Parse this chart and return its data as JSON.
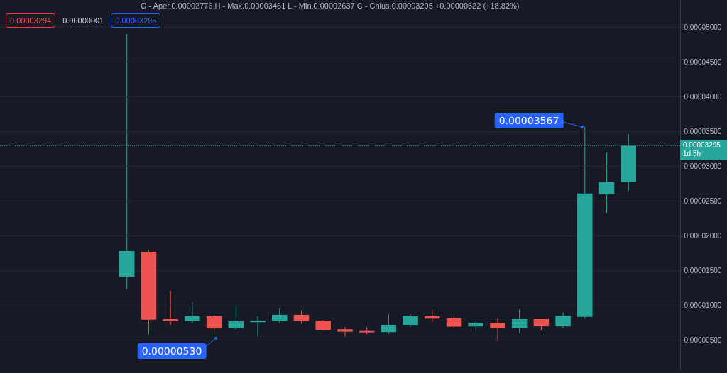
{
  "chart_data": {
    "type": "candlestick",
    "categories": [
      null,
      null,
      null,
      null,
      null,
      null,
      null,
      null,
      null,
      null,
      null,
      null,
      null,
      null,
      null,
      null,
      null,
      null,
      null,
      null,
      null,
      null,
      null,
      null
    ],
    "ohlc": [
      [
        1.415e-05,
        4.898e-05,
        1.232e-05,
        1.782e-05
      ],
      [
        1.772e-05,
        1.802e-05,
        5.9e-06,
        7.95e-06
      ],
      [
        8.04e-06,
        1.202e-05,
        7.16e-06,
        7.77e-06
      ],
      [
        7.77e-06,
        1.05e-05,
        7.54e-06,
        8.45e-06
      ],
      [
        8.45e-06,
        8.66e-06,
        5.3e-06,
        6.7e-06
      ],
      [
        6.72e-06,
        9.88e-06,
        6.52e-06,
        7.74e-06
      ],
      [
        7.6e-06,
        8.45e-06,
        5.47e-06,
        7.84e-06
      ],
      [
        7.77e-06,
        9.57e-06,
        7.46e-06,
        8.66e-06
      ],
      [
        8.66e-06,
        9.3e-06,
        7.36e-06,
        7.77e-06
      ],
      [
        7.81e-06,
        7.9e-06,
        6.42e-06,
        6.49e-06
      ],
      [
        6.59e-06,
        6.92e-06,
        5.5e-06,
        6.24e-06
      ],
      [
        6.34e-06,
        6.85e-06,
        5.88e-06,
        6.14e-06
      ],
      [
        6.18e-06,
        8.79e-06,
        5.94e-06,
        7.2e-06
      ],
      [
        7.13e-06,
        8.73e-06,
        6.96e-06,
        8.45e-06
      ],
      [
        8.45e-06,
        9.4e-06,
        7.64e-06,
        8.11e-06
      ],
      [
        8.18e-06,
        8.45e-06,
        6.69e-06,
        6.96e-06
      ],
      [
        7e-06,
        7.64e-06,
        6.34e-06,
        7.5e-06
      ],
      [
        7.5e-06,
        8.18e-06,
        4.89e-06,
        6.75e-06
      ],
      [
        6.79e-06,
        9.4e-06,
        6.01e-06,
        8.04e-06
      ],
      [
        8.04e-06,
        8.04e-06,
        6.42e-06,
        7e-06
      ],
      [
        7e-06,
        8.99e-06,
        6.75e-06,
        8.52e-06
      ],
      [
        8.38e-06,
        3.567e-05,
        8.12e-06,
        2.61e-05
      ],
      [
        2.6e-05,
        3.198e-05,
        2.325e-05,
        2.776e-05
      ],
      [
        2.776e-05,
        3.461e-05,
        2.637e-05,
        3.295e-05
      ]
    ],
    "colors": [
      "#26a69a",
      "#ef5350",
      "#ef5350",
      "#26a69a",
      "#ef5350",
      "#26a69a",
      "#26a69a",
      "#26a69a",
      "#ef5350",
      "#ef5350",
      "#ef5350",
      "#ef5350",
      "#26a69a",
      "#26a69a",
      "#ef5350",
      "#ef5350",
      "#26a69a",
      "#ef5350",
      "#26a69a",
      "#ef5350",
      "#26a69a",
      "#26a69a",
      "#26a69a",
      "#26a69a"
    ],
    "ylim": [
      7e-07,
      5.39e-05
    ],
    "yticks": [
      {
        "value": 5e-06,
        "label": "0.00000500"
      },
      {
        "value": 1e-05,
        "label": "0.00001000"
      },
      {
        "value": 1.5e-05,
        "label": "0.00001500"
      },
      {
        "value": 2e-05,
        "label": "0.00002000"
      },
      {
        "value": 2.5e-05,
        "label": "0.00002500"
      },
      {
        "value": 3e-05,
        "label": "0.00003000"
      },
      {
        "value": 3.5e-05,
        "label": "0.00003500"
      },
      {
        "value": 4e-05,
        "label": "0.00004000"
      },
      {
        "value": 4.5e-05,
        "label": "0.00004500"
      },
      {
        "value": 5e-05,
        "label": "0.00005000"
      }
    ],
    "grid": "y",
    "tick_labels": "y",
    "ref_lines": [
      {
        "axis": "y",
        "value": 3.295e-05,
        "label": "0.00003295\n1d 5h",
        "color": "#26a69a",
        "line_style": "dotted"
      }
    ],
    "annotations": [
      "O - Aper.0.00002776  H - Max.0.00003461  L - Min.0.00002637  C - Chius.0.00003295 +0.00000522 (+18.82%)",
      "0.00003294",
      "0.00000001",
      "0.00003295",
      "0.00003567",
      "0.00000530"
    ]
  }
}
